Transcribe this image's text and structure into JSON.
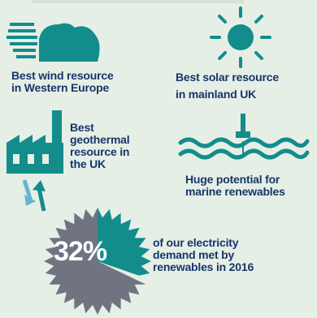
{
  "panels": {
    "wind": {
      "label_line1": "Best wind resource",
      "label_line2": "in Western Europe",
      "icon": "wind-cloud-icon"
    },
    "solar": {
      "label_line1": "Best solar resource",
      "label_line2": "in mainland UK",
      "icon": "sun-icon"
    },
    "geothermal": {
      "label_line1": "Best",
      "label_line2": "geothermal",
      "label_line3": "resource in",
      "label_line4": "the UK",
      "icon": "factory-geothermal-icon"
    },
    "marine": {
      "label_line1": "Huge potential for",
      "label_line2": "marine renewables",
      "icon": "wave-buoy-icon"
    },
    "electricity": {
      "percentage": "32%",
      "label_line1": "of our electricity",
      "label_line2": "demand met by",
      "label_line3": "renewables in 2016",
      "icon": "gear-pie-icon"
    }
  },
  "colors": {
    "teal": "#138c8c",
    "light_teal": "#62b7d3",
    "navy": "#17356a",
    "grey": "#6f7480",
    "background": "#e6efe6"
  }
}
